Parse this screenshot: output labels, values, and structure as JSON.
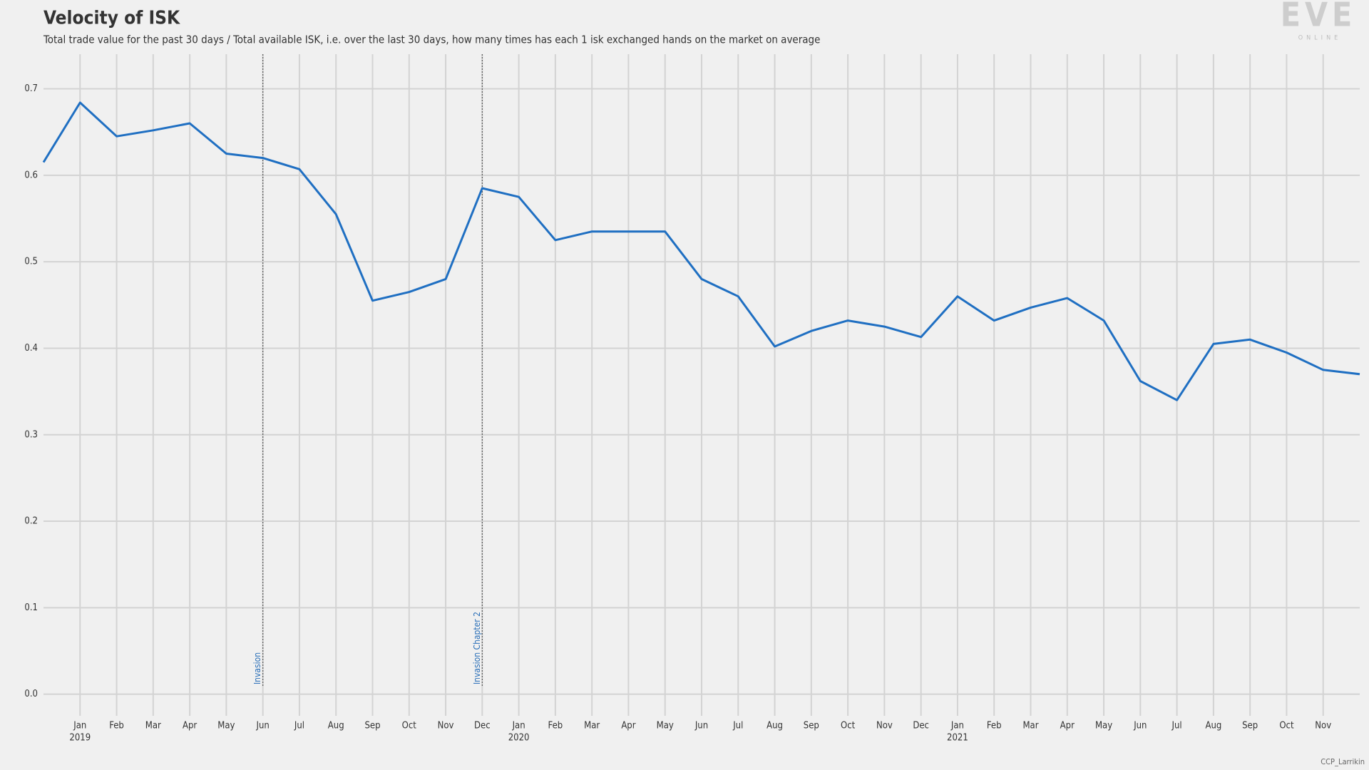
{
  "chart_data": {
    "type": "line",
    "title": "Velocity of ISK",
    "subtitle": "Total trade value for the past 30 days / Total available ISK, i.e. over the last 30 days, how many times has each 1 isk exchanged hands on the market on average",
    "logo": "EVE",
    "logo_sub": "ONLINE",
    "credit": "CCP_Larrikin",
    "color": "#1f6fc2",
    "grid": true,
    "x": [
      "2018-12",
      "2019-01",
      "2019-02",
      "2019-03",
      "2019-04",
      "2019-05",
      "2019-06",
      "2019-07",
      "2019-08",
      "2019-09",
      "2019-10",
      "2019-11",
      "2019-12",
      "2020-01",
      "2020-02",
      "2020-03",
      "2020-04",
      "2020-05",
      "2020-06",
      "2020-07",
      "2020-08",
      "2020-09",
      "2020-10",
      "2020-11",
      "2020-12",
      "2021-01",
      "2021-02",
      "2021-03",
      "2021-04",
      "2021-05",
      "2021-06",
      "2021-07",
      "2021-08",
      "2021-09",
      "2021-10",
      "2021-11",
      "2021-12"
    ],
    "values": [
      0.615,
      0.684,
      0.645,
      0.652,
      0.66,
      0.625,
      0.62,
      0.607,
      0.555,
      0.455,
      0.465,
      0.48,
      0.585,
      0.575,
      0.525,
      0.535,
      0.535,
      0.535,
      0.48,
      0.46,
      0.402,
      0.42,
      0.432,
      0.425,
      0.413,
      0.46,
      0.432,
      0.447,
      0.458,
      0.432,
      0.362,
      0.34,
      0.405,
      0.41,
      0.395,
      0.375,
      0.37
    ],
    "xlim": [
      "2018-12",
      "2021-12"
    ],
    "ylim": [
      -0.025,
      0.74
    ],
    "yticks": [
      {
        "value": 0,
        "label": "0.0"
      },
      0.1,
      0.2,
      0.3,
      0.4,
      0.5,
      0.6,
      0.7
    ],
    "xticks": [
      {
        "value": "2019-01",
        "label": "Jan"
      },
      {
        "value": "2019-02",
        "label": "Feb"
      },
      {
        "value": "2019-03",
        "label": "Mar"
      },
      {
        "value": "2019-04",
        "label": "Apr"
      },
      {
        "value": "2019-05",
        "label": "May"
      },
      {
        "value": "2019-06",
        "label": "Jun"
      },
      {
        "value": "2019-07",
        "label": "Jul"
      },
      {
        "value": "2019-08",
        "label": "Aug"
      },
      {
        "value": "2019-09",
        "label": "Sep"
      },
      {
        "value": "2019-10",
        "label": "Oct"
      },
      {
        "value": "2019-11",
        "label": "Nov"
      },
      {
        "value": "2019-12",
        "label": "Dec"
      },
      {
        "value": "2020-01",
        "label": "Jan"
      },
      {
        "value": "2020-02",
        "label": "Feb"
      },
      {
        "value": "2020-03",
        "label": "Mar"
      },
      {
        "value": "2020-04",
        "label": "Apr"
      },
      {
        "value": "2020-05",
        "label": "May"
      },
      {
        "value": "2020-06",
        "label": "Jun"
      },
      {
        "value": "2020-07",
        "label": "Jul"
      },
      {
        "value": "2020-08",
        "label": "Aug"
      },
      {
        "value": "2020-09",
        "label": "Sep"
      },
      {
        "value": "2020-10",
        "label": "Oct"
      },
      {
        "value": "2020-11",
        "label": "Nov"
      },
      {
        "value": "2020-12",
        "label": "Dec"
      },
      {
        "value": "2021-01",
        "label": "Jan"
      },
      {
        "value": "2021-02",
        "label": "Feb"
      },
      {
        "value": "2021-03",
        "label": "Mar"
      },
      {
        "value": "2021-04",
        "label": "Apr"
      },
      {
        "value": "2021-05",
        "label": "May"
      },
      {
        "value": "2021-06",
        "label": "Jun"
      },
      {
        "value": "2021-07",
        "label": "Jul"
      },
      {
        "value": "2021-08",
        "label": "Aug"
      },
      {
        "value": "2021-09",
        "label": "Sep"
      },
      {
        "value": "2021-10",
        "label": "Oct"
      },
      {
        "value": "2021-11",
        "label": "Nov"
      }
    ],
    "year_labels": [
      {
        "value": "2019-01",
        "label": "2019"
      },
      {
        "value": "2020-01",
        "label": "2020"
      },
      {
        "value": "2021-01",
        "label": "2021"
      }
    ],
    "annotations": [
      {
        "x": "2019-06",
        "text": "Invasion"
      },
      {
        "x": "2019-12",
        "text": "Invasion Chapter 2"
      }
    ]
  }
}
